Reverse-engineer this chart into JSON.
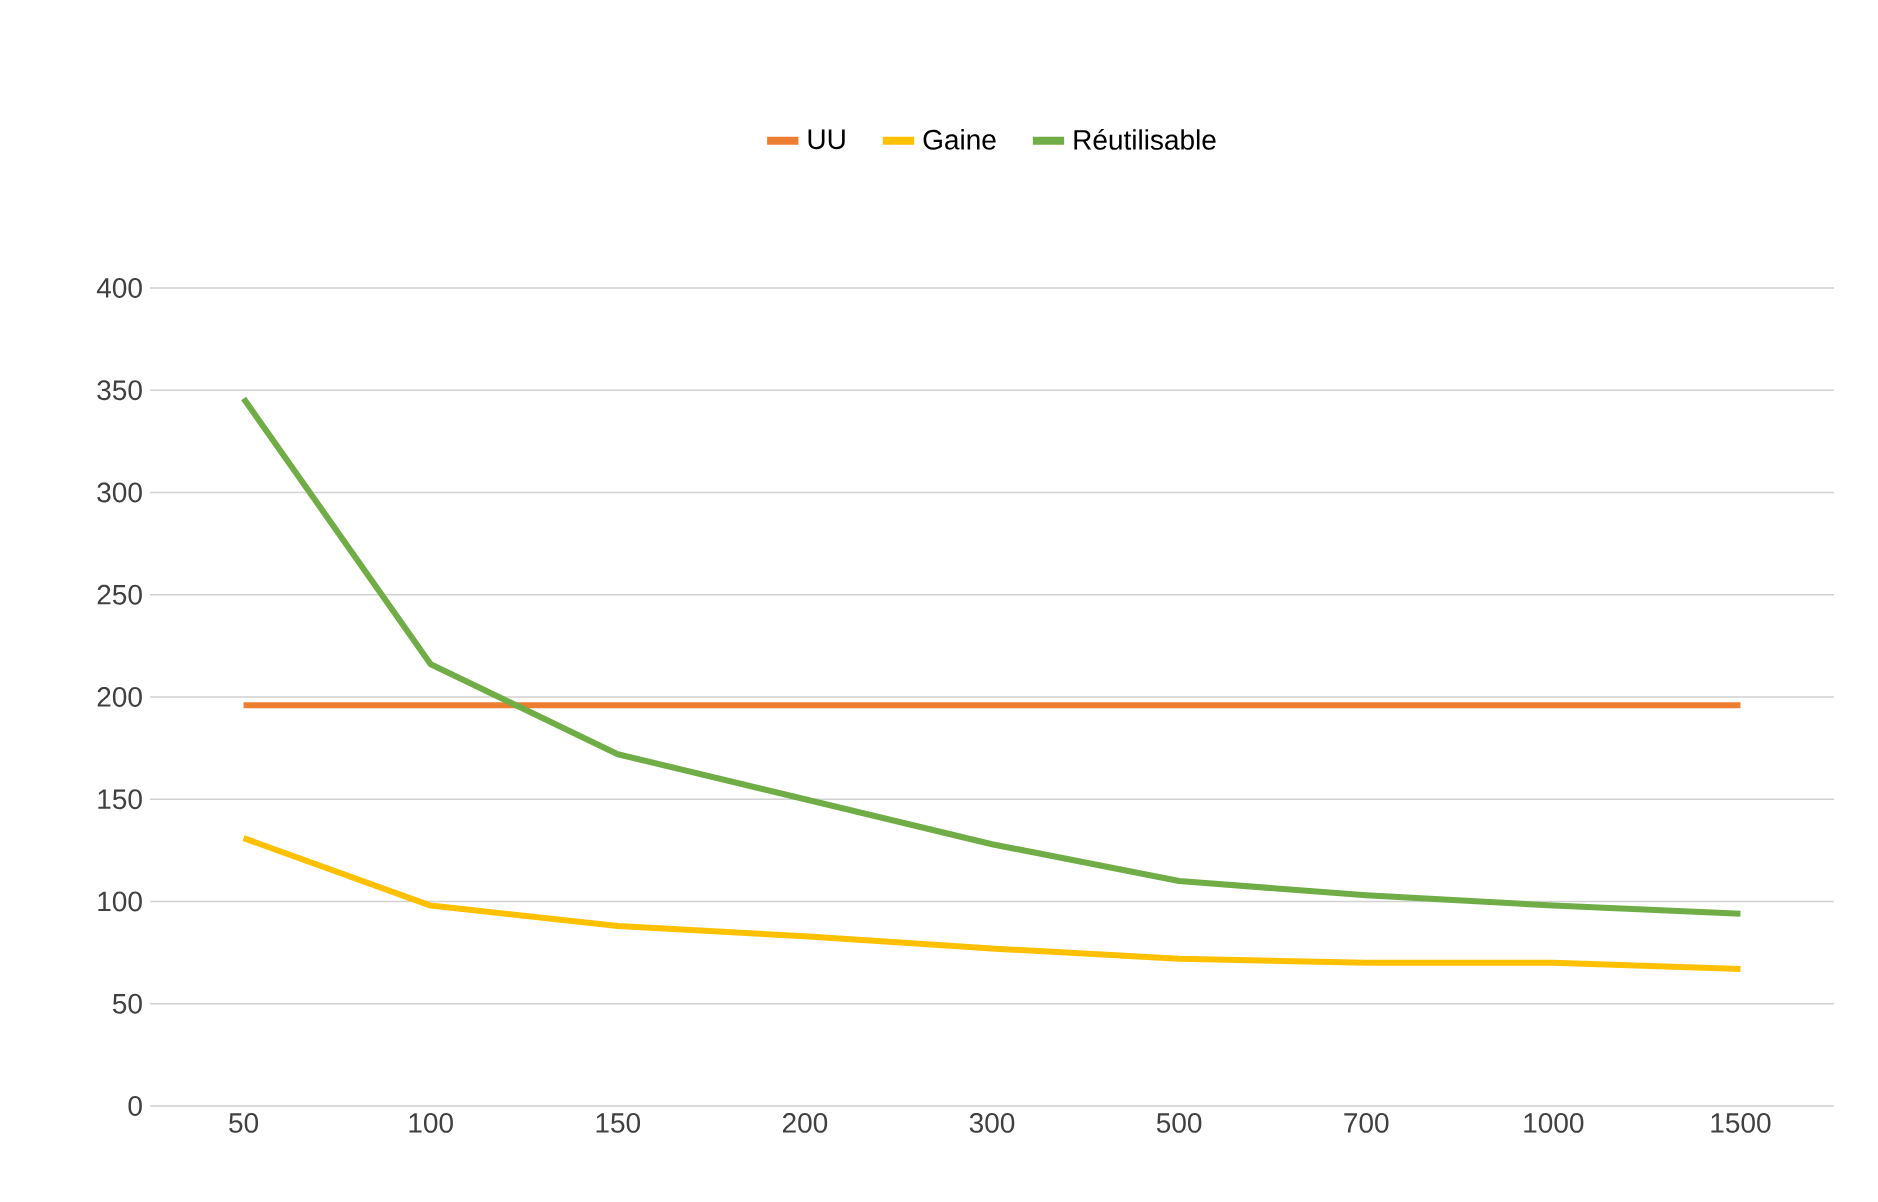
{
  "chart_data": {
    "type": "line",
    "categories": [
      "50",
      "100",
      "150",
      "200",
      "300",
      "500",
      "700",
      "1000",
      "1500"
    ],
    "series": [
      {
        "name": "UU",
        "color": "#ed7d31",
        "values": [
          196,
          196,
          196,
          196,
          196,
          196,
          196,
          196,
          196
        ]
      },
      {
        "name": "Gaine",
        "color": "#ffc000",
        "values": [
          131,
          98,
          88,
          83,
          77,
          72,
          70,
          70,
          67
        ]
      },
      {
        "name": "Réutilisable",
        "color": "#70ad47",
        "values": [
          346,
          216,
          172,
          150,
          128,
          110,
          103,
          98,
          94
        ]
      }
    ],
    "ylim": [
      0,
      400
    ],
    "yticks": [
      0,
      50,
      100,
      150,
      200,
      250,
      300,
      350,
      400
    ],
    "grid": "y",
    "legend": "top",
    "marker": "none",
    "line_style": "solid"
  }
}
